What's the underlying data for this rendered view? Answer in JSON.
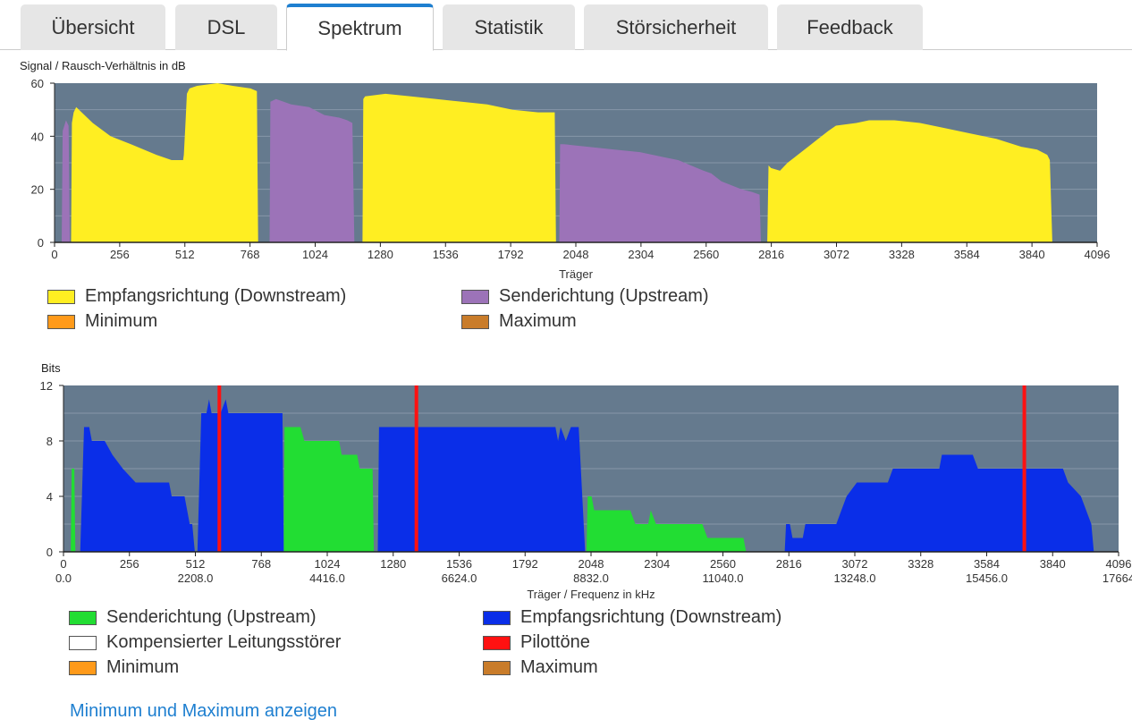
{
  "tabs": [
    {
      "label": "Übersicht",
      "active": false
    },
    {
      "label": "DSL",
      "active": false
    },
    {
      "label": "Spektrum",
      "active": true
    },
    {
      "label": "Statistik",
      "active": false
    },
    {
      "label": "Störsicherheit",
      "active": false
    },
    {
      "label": "Feedback",
      "active": false
    }
  ],
  "snr_chart": {
    "title": "Signal / Rausch-Verhältnis in dB",
    "xlabel": "Träger",
    "legend": [
      {
        "label": "Empfangsrichtung (Downstream)",
        "color": "#ffee22"
      },
      {
        "label": "Senderichtung (Upstream)",
        "color": "#9c73b8"
      },
      {
        "label": "Minimum",
        "color": "#ff9a1a"
      },
      {
        "label": "Maximum",
        "color": "#c97c2a"
      }
    ]
  },
  "bits_chart": {
    "title": "Bits",
    "xlabel": "Träger / Frequenz in kHz",
    "legend": [
      {
        "label": "Senderichtung (Upstream)",
        "color": "#22dd33"
      },
      {
        "label": "Empfangsrichtung (Downstream)",
        "color": "#0a2ee8"
      },
      {
        "label": "Kompensierter Leitungsstörer",
        "color": "#ffffff"
      },
      {
        "label": "Pilottöne",
        "color": "#ff1111"
      },
      {
        "label": "Minimum",
        "color": "#ff9a1a"
      },
      {
        "label": "Maximum",
        "color": "#c97c2a"
      }
    ]
  },
  "link_text": "Minimum und Maximum anzeigen",
  "chart_data": [
    {
      "type": "area",
      "title": "Signal / Rausch-Verhältnis in dB",
      "xlabel": "Träger",
      "ylabel": "",
      "xlim": [
        0,
        4096
      ],
      "ylim": [
        0,
        60
      ],
      "xticks": [
        "0",
        "256",
        "512",
        "768",
        "1024",
        "1280",
        "1536",
        "1792",
        "2048",
        "2304",
        "2560",
        "2816",
        "3072",
        "3328",
        "3584",
        "3840",
        "4096"
      ],
      "yticks": [
        "0",
        "20",
        "40",
        "60"
      ],
      "grid": true,
      "background": "#657a8e",
      "series": [
        {
          "name": "Empfangsrichtung (Downstream)",
          "color": "#ffee22",
          "segments": [
            [
              [
                65,
                0
              ],
              [
                68,
                45
              ],
              [
                75,
                49
              ],
              [
                85,
                51
              ],
              [
                150,
                45
              ],
              [
                220,
                40
              ],
              [
                300,
                37
              ],
              [
                400,
                33
              ],
              [
                460,
                31
              ],
              [
                505,
                31
              ],
              [
                508,
                33
              ],
              [
                515,
                46
              ],
              [
                520,
                56
              ],
              [
                530,
                58
              ],
              [
                560,
                59
              ],
              [
                640,
                60
              ],
              [
                700,
                59
              ],
              [
                770,
                58
              ],
              [
                795,
                57
              ],
              [
                800,
                0
              ]
            ],
            [
              [
                1210,
                0
              ],
              [
                1213,
                54
              ],
              [
                1220,
                55
              ],
              [
                1300,
                56
              ],
              [
                1400,
                55
              ],
              [
                1500,
                54
              ],
              [
                1600,
                53
              ],
              [
                1700,
                52
              ],
              [
                1800,
                50
              ],
              [
                1900,
                49
              ],
              [
                1965,
                49
              ],
              [
                1970,
                0
              ]
            ],
            [
              [
                2800,
                0
              ],
              [
                2805,
                29
              ],
              [
                2815,
                28
              ],
              [
                2850,
                27
              ],
              [
                2880,
                30
              ],
              [
                2920,
                33
              ],
              [
                2960,
                36
              ],
              [
                3000,
                39
              ],
              [
                3040,
                42
              ],
              [
                3070,
                44
              ],
              [
                3150,
                45
              ],
              [
                3200,
                46
              ],
              [
                3300,
                46
              ],
              [
                3400,
                45
              ],
              [
                3500,
                43
              ],
              [
                3600,
                41
              ],
              [
                3700,
                39
              ],
              [
                3800,
                36
              ],
              [
                3860,
                35
              ],
              [
                3900,
                33
              ],
              [
                3910,
                31
              ],
              [
                3920,
                0
              ]
            ]
          ]
        },
        {
          "name": "Senderichtung (Upstream)",
          "color": "#9c73b8",
          "segments": [
            [
              [
                28,
                0
              ],
              [
                32,
                42
              ],
              [
                45,
                46
              ],
              [
                55,
                44
              ],
              [
                60,
                0
              ]
            ],
            [
              [
                845,
                0
              ],
              [
                848,
                53
              ],
              [
                870,
                54
              ],
              [
                930,
                52
              ],
              [
                1000,
                51
              ],
              [
                1060,
                48
              ],
              [
                1120,
                47
              ],
              [
                1150,
                46
              ],
              [
                1170,
                45
              ],
              [
                1178,
                0
              ]
            ],
            [
              [
                1983,
                0
              ],
              [
                1986,
                37
              ],
              [
                2000,
                37
              ],
              [
                2100,
                36
              ],
              [
                2200,
                35
              ],
              [
                2300,
                34
              ],
              [
                2400,
                32
              ],
              [
                2450,
                31
              ],
              [
                2500,
                29
              ],
              [
                2550,
                27
              ],
              [
                2580,
                26
              ],
              [
                2620,
                23
              ],
              [
                2700,
                20
              ],
              [
                2740,
                19
              ],
              [
                2770,
                18
              ],
              [
                2775,
                0
              ]
            ]
          ]
        }
      ]
    },
    {
      "type": "area",
      "title": "Bits",
      "xlabel": "Träger / Frequenz in kHz",
      "ylabel": "",
      "xlim": [
        0,
        4096
      ],
      "ylim": [
        0,
        12
      ],
      "xticks": [
        "0",
        "256",
        "512",
        "768",
        "1024",
        "1280",
        "1536",
        "1792",
        "2048",
        "2304",
        "2560",
        "2816",
        "3072",
        "3328",
        "3584",
        "3840",
        "4096"
      ],
      "xticks_secondary": [
        {
          "x": 0,
          "label": "0.0"
        },
        {
          "x": 512,
          "label": "2208.0"
        },
        {
          "x": 1024,
          "label": "4416.0"
        },
        {
          "x": 1536,
          "label": "6624.0"
        },
        {
          "x": 2048,
          "label": "8832.0"
        },
        {
          "x": 2560,
          "label": "11040.0"
        },
        {
          "x": 3072,
          "label": "13248.0"
        },
        {
          "x": 3584,
          "label": "15456.0"
        },
        {
          "x": 4096,
          "label": "17664"
        }
      ],
      "yticks": [
        "0",
        "4",
        "8",
        "12"
      ],
      "grid": true,
      "background": "#657a8e",
      "series": [
        {
          "name": "Senderichtung (Upstream)",
          "color": "#22dd33",
          "segments": [
            [
              [
                28,
                0
              ],
              [
                32,
                6
              ],
              [
                42,
                6
              ],
              [
                46,
                0
              ]
            ],
            [
              [
                855,
                0
              ],
              [
                858,
                9
              ],
              [
                920,
                9
              ],
              [
                935,
                8
              ],
              [
                1070,
                8
              ],
              [
                1080,
                7
              ],
              [
                1140,
                7
              ],
              [
                1150,
                6
              ],
              [
                1200,
                6
              ],
              [
                1205,
                0
              ]
            ],
            [
              [
                2030,
                0
              ],
              [
                2035,
                4
              ],
              [
                2050,
                4
              ],
              [
                2060,
                3
              ],
              [
                2200,
                3
              ],
              [
                2220,
                2
              ],
              [
                2270,
                2
              ],
              [
                2280,
                3
              ],
              [
                2300,
                2
              ],
              [
                2480,
                2
              ],
              [
                2500,
                1
              ],
              [
                2640,
                1
              ],
              [
                2650,
                0
              ]
            ]
          ]
        },
        {
          "name": "Empfangsrichtung (Downstream)",
          "color": "#0a2ee8",
          "segments": [
            [
              [
                65,
                0
              ],
              [
                80,
                9
              ],
              [
                100,
                9
              ],
              [
                110,
                8
              ],
              [
                160,
                8
              ],
              [
                190,
                7
              ],
              [
                230,
                6
              ],
              [
                280,
                5
              ],
              [
                410,
                5
              ],
              [
                420,
                4
              ],
              [
                470,
                4
              ],
              [
                490,
                2
              ],
              [
                500,
                2
              ],
              [
                510,
                0
              ]
            ],
            [
              [
                520,
                0
              ],
              [
                535,
                10
              ],
              [
                555,
                10
              ],
              [
                565,
                11
              ],
              [
                575,
                10
              ],
              [
                610,
                10
              ],
              [
                630,
                11
              ],
              [
                640,
                10
              ],
              [
                850,
                10
              ],
              [
                855,
                0
              ]
            ],
            [
              [
                1220,
                0
              ],
              [
                1225,
                9
              ],
              [
                1910,
                9
              ],
              [
                1920,
                8
              ],
              [
                1930,
                9
              ],
              [
                1950,
                8
              ],
              [
                1970,
                9
              ],
              [
                2000,
                9
              ],
              [
                2025,
                0
              ]
            ],
            [
              [
                2800,
                0
              ],
              [
                2805,
                2
              ],
              [
                2820,
                2
              ],
              [
                2830,
                1
              ],
              [
                2870,
                1
              ],
              [
                2880,
                2
              ],
              [
                3000,
                2
              ],
              [
                3020,
                3
              ],
              [
                3040,
                4
              ],
              [
                3080,
                5
              ],
              [
                3200,
                5
              ],
              [
                3220,
                6
              ],
              [
                3400,
                6
              ],
              [
                3410,
                7
              ],
              [
                3530,
                7
              ],
              [
                3550,
                6
              ],
              [
                3880,
                6
              ],
              [
                3900,
                5
              ],
              [
                3950,
                4
              ],
              [
                3990,
                2
              ],
              [
                4000,
                0
              ]
            ]
          ]
        },
        {
          "name": "Pilottöne",
          "color": "#ff1111",
          "markers": [
            605,
            1370,
            3730
          ]
        }
      ]
    }
  ]
}
